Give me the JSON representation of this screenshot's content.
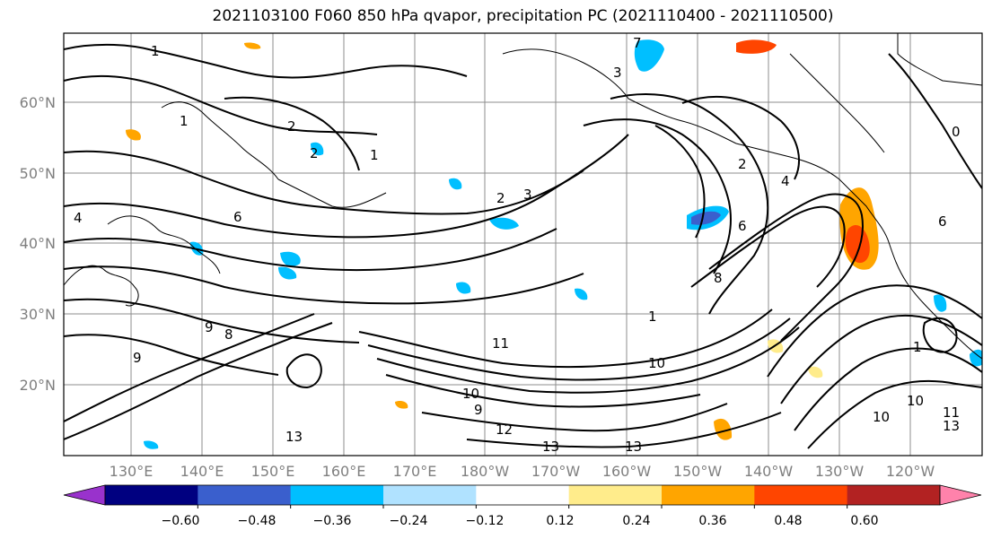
{
  "title": "2021103100 F060 850 hPa qvapor, precipitation PC (2021110400 - 2021110500)",
  "latitude_labels": [
    "20°N",
    "30°N",
    "40°N",
    "50°N",
    "60°N"
  ],
  "longitude_labels": [
    "130°E",
    "140°E",
    "150°E",
    "160°E",
    "170°E",
    "180°W",
    "170°W",
    "160°W",
    "150°W",
    "140°W",
    "130°W",
    "120°W"
  ],
  "colorbar": {
    "tick_labels": [
      "−0.60",
      "−0.48",
      "−0.36",
      "−0.24",
      "−0.12",
      "0.12",
      "0.24",
      "0.36",
      "0.48",
      "0.60"
    ],
    "colors": [
      "#9932cc",
      "#000080",
      "#3a5fcd",
      "#00bfff",
      "#b0e2ff",
      "#ffffff",
      "#ffec8b",
      "#ffa500",
      "#ff4500",
      "#b22222",
      "#ff82ab"
    ]
  },
  "contour_labels": [
    "1",
    "1",
    "2",
    "3",
    "2",
    "3",
    "4",
    "6",
    "6",
    "8",
    "8",
    "9",
    "10",
    "10",
    "11",
    "12",
    "13",
    "13",
    "13",
    "13",
    "10",
    "10",
    "9",
    "7",
    "1",
    "1",
    "4",
    "6",
    "2",
    "2",
    "1",
    "0",
    "9",
    "11"
  ]
}
